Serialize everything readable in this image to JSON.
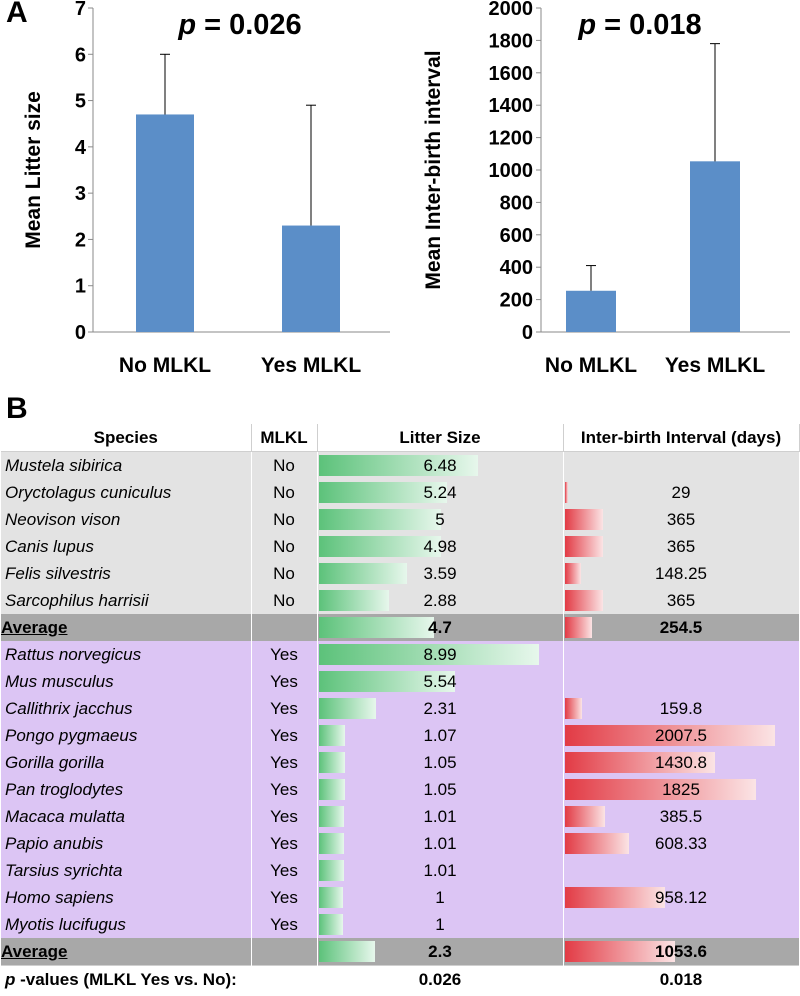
{
  "panels": {
    "a": "A",
    "b": "B"
  },
  "chart_data": [
    {
      "type": "bar",
      "title": "p = 0.026",
      "title_p": "p",
      "title_rest": " = 0.026",
      "categories": [
        "No MLKL",
        "Yes MLKL"
      ],
      "values": [
        4.7,
        2.3
      ],
      "error_upper": [
        6.0,
        4.9
      ],
      "ylabel": "Mean Litter size",
      "ylim": [
        0,
        7
      ],
      "yticks": [
        0,
        1,
        2,
        3,
        4,
        5,
        6,
        7
      ],
      "bar_color": "#5b8ec8"
    },
    {
      "type": "bar",
      "title": "p = 0.018",
      "title_p": "p",
      "title_rest": " = 0.018",
      "categories": [
        "No MLKL",
        "Yes MLKL"
      ],
      "values": [
        254.5,
        1053.6
      ],
      "error_upper": [
        410,
        1780
      ],
      "ylabel": "Mean Inter-birth interval",
      "ylim": [
        0,
        2000
      ],
      "yticks": [
        0,
        200,
        400,
        600,
        800,
        1000,
        1200,
        1400,
        1600,
        1800,
        2000
      ],
      "bar_color": "#5b8ec8"
    }
  ],
  "table": {
    "headers": {
      "species": "Species",
      "mlkl": "MLKL",
      "litter": "Litter Size",
      "interval": "Inter-birth Interval (days)"
    },
    "litter_max": 8.99,
    "interval_max": 2007.5,
    "no_group": [
      {
        "species": "Mustela sibirica",
        "mlkl": "No",
        "litter": "6.48",
        "interval": ""
      },
      {
        "species": "Oryctolagus cuniculus",
        "mlkl": "No",
        "litter": "5.24",
        "interval": "29"
      },
      {
        "species": "Neovison vison",
        "mlkl": "No",
        "litter": "5",
        "interval": "365"
      },
      {
        "species": "Canis lupus",
        "mlkl": "No",
        "litter": "4.98",
        "interval": "365"
      },
      {
        "species": "Felis silvestris",
        "mlkl": "No",
        "litter": "3.59",
        "interval": "148.25"
      },
      {
        "species": "Sarcophilus harrisii",
        "mlkl": "No",
        "litter": "2.88",
        "interval": "365"
      }
    ],
    "no_average": {
      "label": "Average",
      "litter": "4.7",
      "interval": "254.5"
    },
    "yes_group": [
      {
        "species": "Rattus norvegicus",
        "mlkl": "Yes",
        "litter": "8.99",
        "interval": ""
      },
      {
        "species": "Mus musculus",
        "mlkl": "Yes",
        "litter": "5.54",
        "interval": ""
      },
      {
        "species": "Callithrix jacchus",
        "mlkl": "Yes",
        "litter": "2.31",
        "interval": "159.8"
      },
      {
        "species": "Pongo pygmaeus",
        "mlkl": "Yes",
        "litter": "1.07",
        "interval": "2007.5"
      },
      {
        "species": "Gorilla gorilla",
        "mlkl": "Yes",
        "litter": "1.05",
        "interval": "1430.8"
      },
      {
        "species": "Pan troglodytes",
        "mlkl": "Yes",
        "litter": "1.05",
        "interval": "1825"
      },
      {
        "species": "Macaca mulatta",
        "mlkl": "Yes",
        "litter": "1.01",
        "interval": "385.5"
      },
      {
        "species": "Papio anubis",
        "mlkl": "Yes",
        "litter": "1.01",
        "interval": "608.33"
      },
      {
        "species": "Tarsius syrichta",
        "mlkl": "Yes",
        "litter": "1.01",
        "interval": ""
      },
      {
        "species": "Homo sapiens",
        "mlkl": "Yes",
        "litter": "1",
        "interval": "958.12"
      },
      {
        "species": "Myotis lucifugus",
        "mlkl": "Yes",
        "litter": "1",
        "interval": ""
      }
    ],
    "yes_average": {
      "label": "Average",
      "litter": "2.3",
      "interval": "1053.6"
    },
    "pvalues": {
      "label_p": "p",
      "label_rest": " -values (MLKL Yes vs. No):",
      "litter": "0.026",
      "interval": "0.018"
    }
  }
}
